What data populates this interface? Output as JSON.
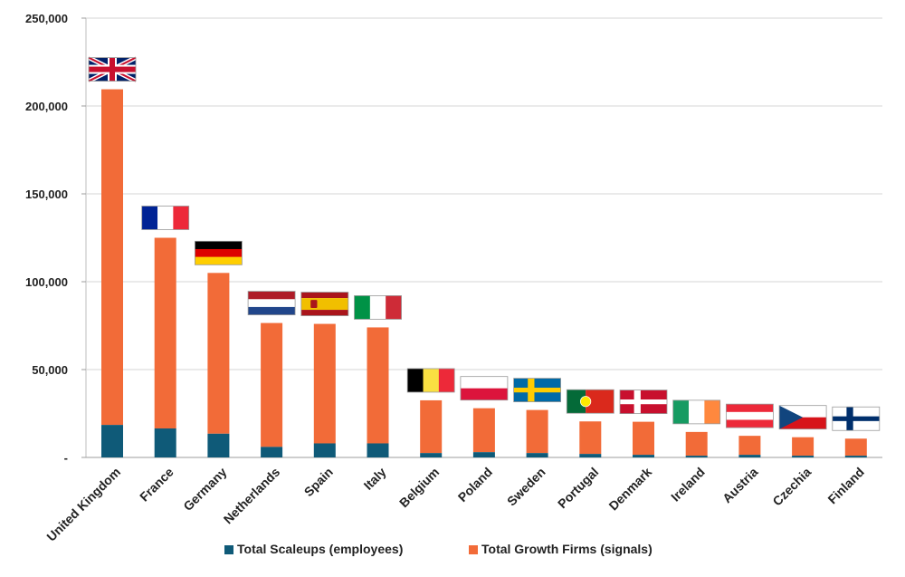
{
  "chart_data": {
    "type": "bar",
    "stacked": true,
    "title": "",
    "xlabel": "",
    "ylabel": "",
    "ylim": [
      0,
      250000
    ],
    "yticks": [
      0,
      50000,
      100000,
      150000,
      200000,
      250000
    ],
    "ytick_labels": [
      "-",
      "50,000",
      "100,000",
      "150,000",
      "200,000",
      "250,000"
    ],
    "grid": true,
    "legend_position": "bottom",
    "categories": [
      "United Kingdom",
      "France",
      "Germany",
      "Netherlands",
      "Spain",
      "Italy",
      "Belgium",
      "Poland",
      "Sweden",
      "Portugal",
      "Denmark",
      "Ireland",
      "Austria",
      "Czechia",
      "Finland"
    ],
    "flags": [
      "uk-flag",
      "france-flag",
      "germany-flag",
      "netherlands-flag",
      "spain-flag",
      "italy-flag",
      "belgium-flag",
      "poland-flag",
      "sweden-flag",
      "portugal-flag",
      "denmark-flag",
      "ireland-flag",
      "austria-flag",
      "czechia-flag",
      "finland-flag"
    ],
    "series": [
      {
        "name": "Total Scaleups (employees)",
        "color": "#0f5a78",
        "values": [
          18500,
          16500,
          13500,
          6000,
          8000,
          8000,
          2500,
          3000,
          2500,
          2000,
          1500,
          1000,
          1500,
          1000,
          1000
        ]
      },
      {
        "name": "Total Growth Firms (signals)",
        "color": "#f26b38",
        "values": [
          191000,
          108500,
          91500,
          70500,
          68000,
          66000,
          30000,
          25000,
          24500,
          18500,
          18800,
          13500,
          10800,
          10500,
          9700
        ]
      }
    ]
  }
}
